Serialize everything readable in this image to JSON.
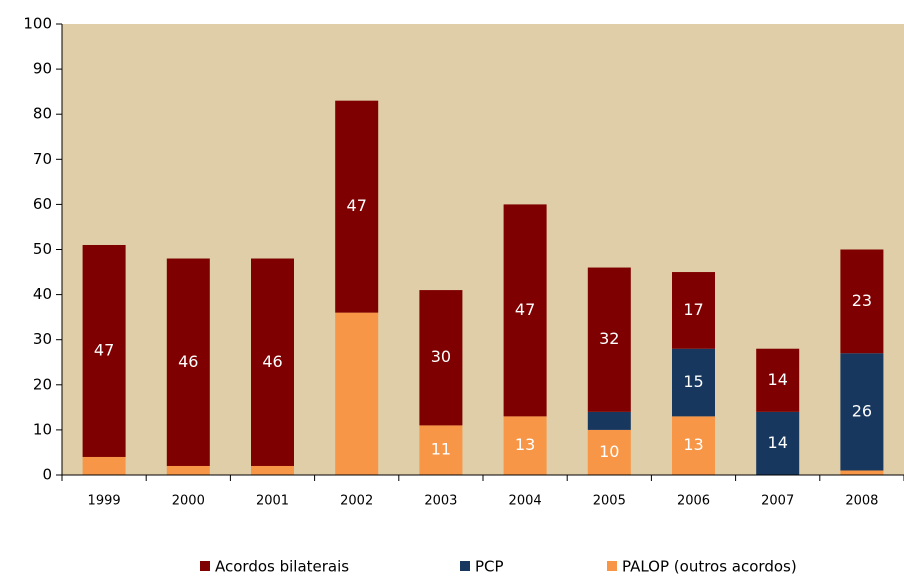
{
  "chart_data": {
    "type": "stacked_bar",
    "categories": [
      "1999",
      "2000",
      "2001",
      "2002",
      "2003",
      "2004",
      "2005",
      "2006",
      "2007",
      "2008"
    ],
    "series": [
      {
        "name": "PALOP (outros acordos)",
        "color": "#f79646",
        "values": [
          4,
          2,
          2,
          36,
          11,
          13,
          10,
          13,
          0,
          1
        ],
        "value_labels": [
          null,
          null,
          null,
          null,
          "11",
          "13",
          "10",
          "13",
          "0",
          null
        ]
      },
      {
        "name": "PCP",
        "color": "#17375e",
        "values": [
          0,
          0,
          0,
          0,
          0,
          0,
          4,
          15,
          14,
          26
        ],
        "value_labels": [
          null,
          null,
          null,
          null,
          null,
          null,
          null,
          "15",
          "14",
          "26"
        ]
      },
      {
        "name": "Acordos bilaterais",
        "color": "#7f0000",
        "values": [
          47,
          46,
          46,
          47,
          30,
          47,
          32,
          17,
          14,
          23
        ],
        "value_labels": [
          "47",
          "46",
          "46",
          "47",
          "30",
          "47",
          "32",
          "17",
          "14",
          "23"
        ]
      }
    ],
    "legend_order": [
      2,
      1,
      0
    ],
    "ylim": [
      0,
      100
    ],
    "yticks": [
      0,
      10,
      20,
      30,
      40,
      50,
      60,
      70,
      80,
      90,
      100
    ],
    "background": "#dfcea8"
  }
}
